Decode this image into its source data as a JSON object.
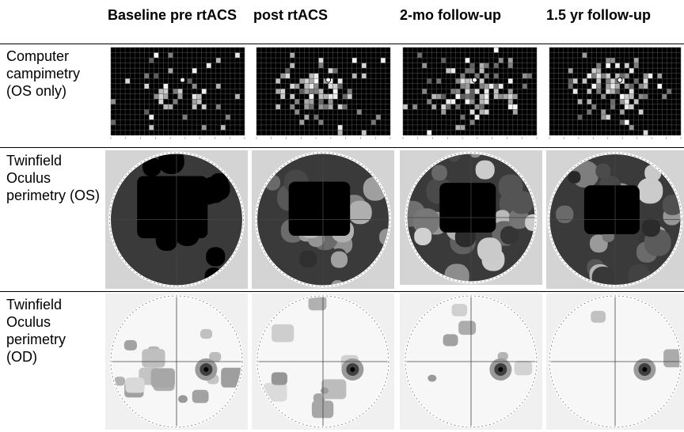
{
  "columns": [
    {
      "label": "Baseline pre rtACS"
    },
    {
      "label": "post rtACS"
    },
    {
      "label": "2-mo follow-up"
    },
    {
      "label": "1.5 yr follow-up"
    }
  ],
  "rows": [
    {
      "label": "Computer campimetry (OS only)",
      "kind": "campimetry",
      "seeds": [
        11,
        23,
        37,
        51
      ],
      "density": [
        0.22,
        0.55,
        0.65,
        0.6
      ]
    },
    {
      "label": "Twinfield Oculus perimetry (OS)",
      "kind": "perimetry-os",
      "seeds": [
        5,
        17,
        29,
        43
      ],
      "darkness": [
        1.0,
        0.6,
        0.45,
        0.35
      ]
    },
    {
      "label": "Twinfield Oculus perimetry (OD)",
      "kind": "perimetry-od",
      "seeds": [
        7,
        19,
        31,
        47
      ],
      "patches": [
        5,
        3,
        2,
        1
      ]
    }
  ],
  "colors": {
    "background": "#ffffff",
    "grid": "#444444",
    "panel_bg": "#d4d4d4"
  }
}
